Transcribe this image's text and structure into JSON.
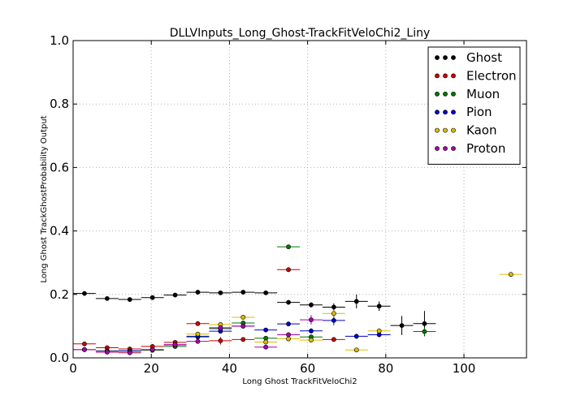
{
  "chart_data": {
    "type": "scatter",
    "title": "DLLVInputs_Long_Ghost-TrackFitVeloChi2_Liny",
    "xlabel": "Long Ghost TrackFitVeloChi2",
    "ylabel": "Long Ghost TrackGhostProbability Output",
    "xlim": [
      0,
      116
    ],
    "ylim": [
      0,
      1.0
    ],
    "xticks": [
      0,
      20,
      40,
      60,
      80,
      100
    ],
    "yticks": [
      0.0,
      0.2,
      0.4,
      0.6,
      0.8,
      1.0
    ],
    "xtick_labels": [
      "0",
      "20",
      "40",
      "60",
      "80",
      "100"
    ],
    "ytick_labels": [
      "0.0",
      "0.2",
      "0.4",
      "0.6",
      "0.8",
      "1.0"
    ],
    "grid": true,
    "legend_position": "top-right",
    "series": [
      {
        "name": "Ghost",
        "color": "#000000",
        "x": [
          2.9,
          8.7,
          14.5,
          20.3,
          26.1,
          31.9,
          37.7,
          43.5,
          49.3,
          55.1,
          60.9,
          66.7,
          72.5,
          78.3,
          84.1,
          89.9
        ],
        "y": [
          0.203,
          0.187,
          0.184,
          0.19,
          0.198,
          0.207,
          0.205,
          0.207,
          0.205,
          0.175,
          0.167,
          0.16,
          0.178,
          0.163,
          0.102,
          0.108
        ],
        "yerr": [
          0.004,
          0.004,
          0.004,
          0.004,
          0.004,
          0.004,
          0.004,
          0.004,
          0.005,
          0.006,
          0.008,
          0.012,
          0.022,
          0.015,
          0.03,
          0.04
        ]
      },
      {
        "name": "Electron",
        "color": "#cc0000",
        "x": [
          2.9,
          8.7,
          14.5,
          20.3,
          26.1,
          31.9,
          37.7,
          43.5,
          55.1,
          66.7
        ],
        "y": [
          0.044,
          0.032,
          0.028,
          0.036,
          0.049,
          0.108,
          0.054,
          0.058,
          0.278,
          0.058
        ],
        "yerr": [
          0.003,
          0.003,
          0.003,
          0.003,
          0.004,
          0.006,
          0.012,
          0.006,
          0.005,
          0.004
        ]
      },
      {
        "name": "Muon",
        "color": "#007700",
        "x": [
          8.7,
          14.5,
          20.3,
          26.1,
          31.9,
          37.7,
          43.5,
          49.3,
          55.1,
          60.9,
          89.9
        ],
        "y": [
          0.022,
          0.022,
          0.024,
          0.036,
          0.066,
          0.092,
          0.11,
          0.062,
          0.35,
          0.066,
          0.083
        ],
        "yerr": [
          0.002,
          0.002,
          0.002,
          0.003,
          0.004,
          0.005,
          0.005,
          0.005,
          0.006,
          0.005,
          0.012
        ]
      },
      {
        "name": "Pion",
        "color": "#0000cc",
        "x": [
          2.9,
          8.7,
          14.5,
          20.3,
          26.1,
          31.9,
          37.7,
          43.5,
          49.3,
          55.1,
          60.9,
          66.7,
          72.5,
          78.3
        ],
        "y": [
          0.026,
          0.022,
          0.022,
          0.026,
          0.04,
          0.068,
          0.084,
          0.1,
          0.088,
          0.107,
          0.085,
          0.118,
          0.068,
          0.073
        ],
        "yerr": [
          0.002,
          0.002,
          0.002,
          0.002,
          0.003,
          0.004,
          0.005,
          0.005,
          0.005,
          0.006,
          0.008,
          0.015,
          0.008,
          0.008
        ]
      },
      {
        "name": "Kaon",
        "color": "#ddbb00",
        "x": [
          2.9,
          8.7,
          14.5,
          20.3,
          26.1,
          31.9,
          37.7,
          43.5,
          49.3,
          55.1,
          60.9,
          66.7,
          72.5,
          78.3,
          112.0
        ],
        "y": [
          0.026,
          0.02,
          0.018,
          0.026,
          0.04,
          0.075,
          0.105,
          0.128,
          0.05,
          0.06,
          0.056,
          0.14,
          0.025,
          0.085,
          0.263
        ],
        "yerr": [
          0.002,
          0.002,
          0.002,
          0.002,
          0.003,
          0.004,
          0.005,
          0.006,
          0.004,
          0.005,
          0.005,
          0.01,
          0.003,
          0.008,
          0.004
        ]
      },
      {
        "name": "Proton",
        "color": "#aa00aa",
        "x": [
          2.9,
          8.7,
          14.5,
          20.3,
          26.1,
          31.9,
          37.7,
          43.5,
          49.3,
          55.1,
          60.9
        ],
        "y": [
          0.026,
          0.018,
          0.016,
          0.026,
          0.042,
          0.052,
          0.095,
          0.1,
          0.034,
          0.073,
          0.12
        ],
        "yerr": [
          0.002,
          0.002,
          0.002,
          0.002,
          0.003,
          0.004,
          0.006,
          0.006,
          0.004,
          0.005,
          0.015
        ]
      }
    ]
  }
}
